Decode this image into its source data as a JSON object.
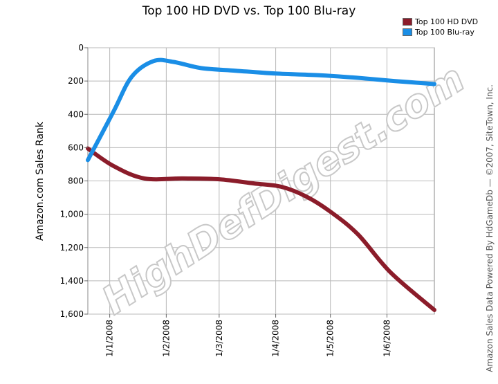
{
  "chart_data": {
    "type": "line",
    "title": "Top 100 HD DVD vs. Top 100 Blu-ray",
    "ylabel": "Amazon.com Sales Rank",
    "xlabel": "",
    "credit": "Amazon Sales Data Powered By HdGameDb — ©2007, SiteTown, Inc.",
    "watermark": "HighDefDigest.com",
    "ylim": [
      0,
      1600
    ],
    "y_inverted": true,
    "y_ticks": [
      0,
      200,
      400,
      600,
      800,
      1000,
      1200,
      1400,
      1600
    ],
    "y_tick_labels": [
      "0",
      "200",
      "400",
      "600",
      "800",
      "1,000",
      "1,200",
      "1,400",
      "1,600"
    ],
    "x_range": [
      "2007-12-20",
      "2008-06-27"
    ],
    "x_ticks": [
      {
        "label": "1/1/2008",
        "date": "2008-01-01"
      },
      {
        "label": "1/2/2008",
        "date": "2008-02-01"
      },
      {
        "label": "1/3/2008",
        "date": "2008-03-01"
      },
      {
        "label": "1/4/2008",
        "date": "2008-04-01"
      },
      {
        "label": "1/5/2008",
        "date": "2008-05-01"
      },
      {
        "label": "1/6/2008",
        "date": "2008-06-01"
      }
    ],
    "grid": true,
    "legend_position": "top-right",
    "series": [
      {
        "name": "Top 100 HD DVD",
        "color": "#8b1c2a",
        "points": [
          {
            "x": "2007-12-20",
            "y": 605
          },
          {
            "x": "2008-01-03",
            "y": 710
          },
          {
            "x": "2008-01-20",
            "y": 785
          },
          {
            "x": "2008-02-10",
            "y": 785
          },
          {
            "x": "2008-03-01",
            "y": 790
          },
          {
            "x": "2008-03-20",
            "y": 815
          },
          {
            "x": "2008-04-04",
            "y": 835
          },
          {
            "x": "2008-04-18",
            "y": 895
          },
          {
            "x": "2008-05-01",
            "y": 985
          },
          {
            "x": "2008-05-16",
            "y": 1120
          },
          {
            "x": "2008-06-03",
            "y": 1350
          },
          {
            "x": "2008-06-27",
            "y": 1575
          }
        ]
      },
      {
        "name": "Top 100 Blu-ray",
        "color": "#1a8ee6",
        "points": [
          {
            "x": "2007-12-20",
            "y": 675
          },
          {
            "x": "2008-01-03",
            "y": 385
          },
          {
            "x": "2008-01-13",
            "y": 175
          },
          {
            "x": "2008-01-25",
            "y": 80
          },
          {
            "x": "2008-02-05",
            "y": 85
          },
          {
            "x": "2008-02-20",
            "y": 122
          },
          {
            "x": "2008-03-10",
            "y": 138
          },
          {
            "x": "2008-04-01",
            "y": 155
          },
          {
            "x": "2008-04-25",
            "y": 165
          },
          {
            "x": "2008-05-15",
            "y": 180
          },
          {
            "x": "2008-06-05",
            "y": 200
          },
          {
            "x": "2008-06-27",
            "y": 218
          }
        ]
      }
    ]
  }
}
